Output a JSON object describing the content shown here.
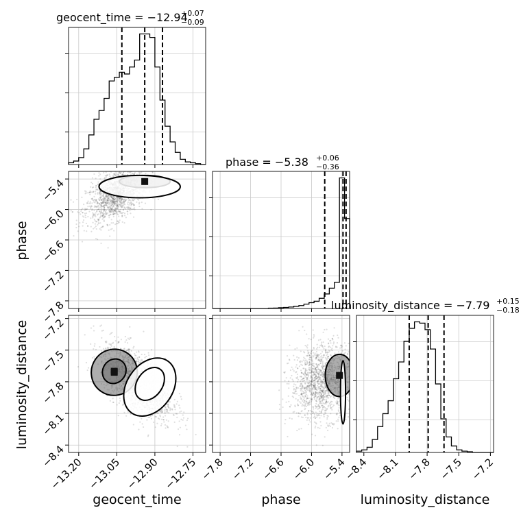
{
  "chart_data": {
    "type": "corner",
    "grid": true,
    "parameters": [
      {
        "name": "geocent_time",
        "range": [
          -13.24,
          -12.7
        ],
        "ticks": [
          -13.2,
          -13.05,
          -12.9,
          -12.75
        ],
        "tick_labels": [
          "−13.20",
          "−13.05",
          "−12.90",
          "−12.75"
        ],
        "title": {
          "main": "geocent_time = −12.94",
          "plus": "+0.07",
          "minus": "−0.09"
        },
        "median": -12.94,
        "quantiles": [
          -13.03,
          -12.94,
          -12.87
        ],
        "hist_bin_edges": [
          -13.24,
          -13.22,
          -13.2,
          -13.18,
          -13.16,
          -13.14,
          -13.12,
          -13.1,
          -13.08,
          -13.06,
          -13.04,
          -13.02,
          -13.0,
          -12.98,
          -12.96,
          -12.94,
          -12.92,
          -12.9,
          -12.88,
          -12.86,
          -12.84,
          -12.82,
          -12.8,
          -12.78,
          -12.76,
          -12.74,
          -12.72,
          -12.7
        ],
        "hist_counts": [
          1,
          2,
          4,
          9,
          17,
          26,
          31,
          38,
          48,
          50,
          53,
          52,
          56,
          60,
          75,
          75,
          73,
          56,
          37,
          22,
          13,
          7,
          3,
          1.5,
          1,
          0.5,
          0
        ]
      },
      {
        "name": "phase",
        "range": [
          -7.95,
          -5.25
        ],
        "ticks": [
          -7.8,
          -7.2,
          -6.6,
          -6.0,
          -5.4
        ],
        "tick_labels": [
          "−7.8",
          "−7.2",
          "−6.6",
          "−6.0",
          "−5.4"
        ],
        "title": {
          "main": "phase = −5.38",
          "plus": "+0.06",
          "minus": "−0.36"
        },
        "median": -5.38,
        "quantiles": [
          -5.74,
          -5.38,
          -5.32
        ],
        "hist_bin_edges": [
          -7.95,
          -7.85,
          -7.75,
          -7.65,
          -7.55,
          -7.45,
          -7.35,
          -7.25,
          -7.15,
          -7.05,
          -6.95,
          -6.85,
          -6.75,
          -6.65,
          -6.55,
          -6.45,
          -6.35,
          -6.25,
          -6.15,
          -6.05,
          -5.95,
          -5.85,
          -5.75,
          -5.65,
          -5.55,
          -5.45,
          -5.35,
          -5.25
        ],
        "hist_counts": [
          0,
          0,
          0,
          0,
          0,
          0,
          0,
          0,
          0,
          0,
          0,
          0.2,
          0.3,
          0.5,
          0.7,
          1,
          1.5,
          2,
          3,
          4,
          5,
          7,
          10,
          14,
          18,
          90,
          62
        ]
      },
      {
        "name": "luminosity_distance",
        "range": [
          -8.47,
          -7.17
        ],
        "ticks": [
          -8.4,
          -8.1,
          -7.8,
          -7.5,
          -7.2
        ],
        "tick_labels": [
          "−8.4",
          "−8.1",
          "−7.8",
          "−7.5",
          "−7.2"
        ],
        "title": {
          "main": "luminosity_distance = −7.79",
          "plus": "+0.15",
          "minus": "−0.18"
        },
        "median": -7.79,
        "quantiles": [
          -7.97,
          -7.79,
          -7.64
        ],
        "hist_bin_edges": [
          -8.47,
          -8.42,
          -8.37,
          -8.32,
          -8.27,
          -8.22,
          -8.17,
          -8.12,
          -8.07,
          -8.02,
          -7.97,
          -7.92,
          -7.87,
          -7.82,
          -7.77,
          -7.72,
          -7.67,
          -7.62,
          -7.57,
          -7.52,
          -7.47,
          -7.42,
          -7.37,
          -7.32,
          -7.27,
          -7.22,
          -7.17
        ],
        "hist_counts": [
          1,
          2,
          4,
          10,
          20,
          30,
          40,
          57,
          70,
          86,
          96,
          101,
          100,
          95,
          80,
          53,
          26,
          12,
          5,
          2,
          1,
          0.5,
          0,
          0,
          0,
          0
        ]
      }
    ],
    "correlations": [
      {
        "x": "geocent_time",
        "y": "phase",
        "center": [
          -13.05,
          -5.7
        ],
        "sd": [
          0.06,
          0.28
        ],
        "rho": 0.5,
        "levels": [
          {
            "cx": -12.94,
            "cy": -5.45,
            "rx": 0.1,
            "ry": 0.12,
            "rot": 0.05
          },
          {
            "cx": -12.96,
            "cy": -5.55,
            "rx": 0.16,
            "ry": 0.22,
            "rot": 0.1
          }
        ]
      },
      {
        "x": "geocent_time",
        "y": "luminosity_distance",
        "center": [
          -12.97,
          -7.8
        ],
        "sd": [
          0.07,
          0.18
        ],
        "rho": -0.6,
        "levels": [
          {
            "cx": -13.06,
            "cy": -7.71,
            "rx": 0.09,
            "ry": 0.22,
            "rot": 35
          },
          {
            "cx": -12.92,
            "cy": -7.85,
            "rx": 0.09,
            "ry": 0.3,
            "rot": 35
          },
          {
            "cx": -13.06,
            "cy": -7.7,
            "rx": 0.045,
            "ry": 0.12,
            "rot": 35
          },
          {
            "cx": -12.92,
            "cy": -7.82,
            "rx": 0.05,
            "ry": 0.17,
            "rot": 35
          }
        ]
      },
      {
        "x": "phase",
        "y": "luminosity_distance",
        "center": [
          -5.8,
          -7.8
        ],
        "sd": [
          0.3,
          0.18
        ],
        "rho": 0.1,
        "levels": [
          {
            "cx": -5.45,
            "cy": -7.74,
            "rx": 0.28,
            "ry": 0.2,
            "rot": 0
          },
          {
            "cx": -5.38,
            "cy": -7.9,
            "rx": 0.05,
            "ry": 0.3,
            "rot": 0
          }
        ]
      }
    ],
    "xlabels": [
      "geocent_time",
      "phase",
      "luminosity_distance"
    ],
    "ylabels": [
      "",
      "phase",
      "luminosity_distance"
    ]
  }
}
